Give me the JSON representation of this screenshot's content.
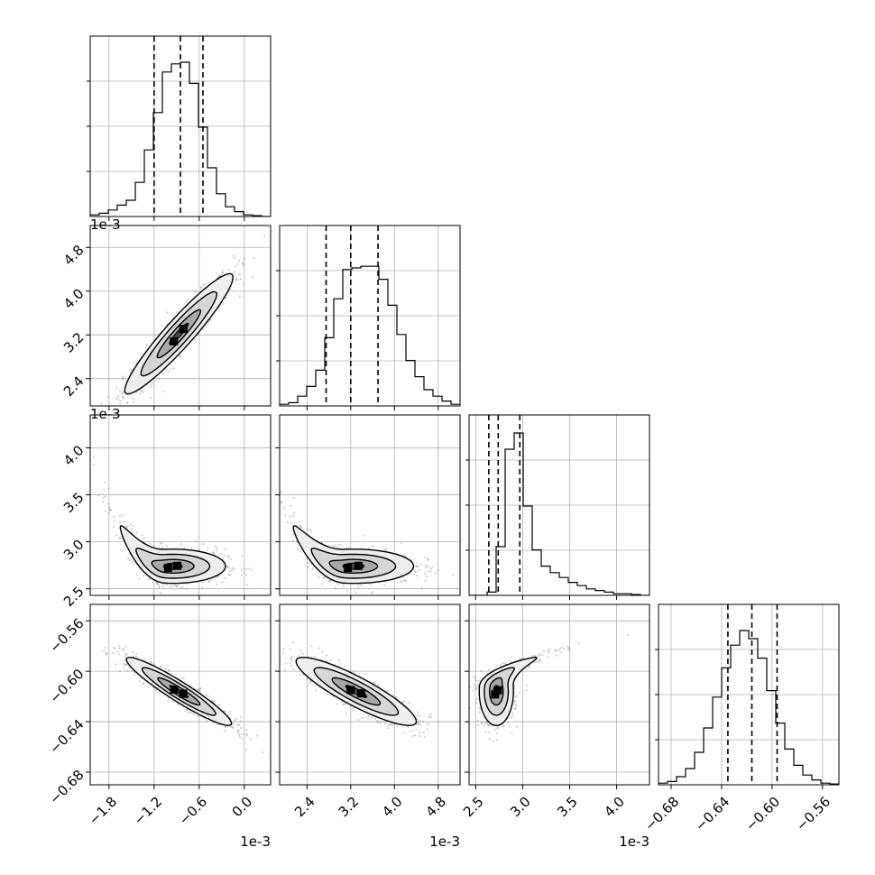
{
  "chart_data": {
    "type": "corner",
    "parameters": [
      {
        "id": "p0",
        "unit_offset": "1e-3",
        "range": [
          -2.05,
          0.35
        ],
        "ticks": [
          -1.8,
          -1.2,
          -0.6,
          0.0
        ],
        "tick_labels": [
          "−1.8",
          "−1.2",
          "−0.6",
          "0.0"
        ],
        "quantiles": [
          -1.2,
          -0.85,
          -0.55
        ]
      },
      {
        "id": "p1",
        "unit_offset": "1e-3",
        "range": [
          1.9,
          5.2
        ],
        "ticks": [
          2.4,
          3.2,
          4.0,
          4.8
        ],
        "tick_labels": [
          "2.4",
          "3.2",
          "4.0",
          "4.8"
        ],
        "quantiles": [
          2.75,
          3.2,
          3.7
        ]
      },
      {
        "id": "p2",
        "unit_offset": "1e-3",
        "range": [
          2.43,
          4.35
        ],
        "ticks": [
          2.5,
          3.0,
          3.5,
          4.0
        ],
        "tick_labels": [
          "2.5",
          "3.0",
          "3.5",
          "4.0"
        ],
        "quantiles": [
          2.64,
          2.74,
          2.97
        ]
      },
      {
        "id": "p3",
        "unit_offset": "",
        "range": [
          -0.69,
          -0.547
        ],
        "ticks": [
          -0.68,
          -0.64,
          -0.6,
          -0.56
        ],
        "tick_labels": [
          "−0.68",
          "−0.64",
          "−0.60",
          "−0.56"
        ],
        "quantiles": [
          -0.635,
          -0.616,
          -0.596
        ]
      }
    ],
    "histograms": [
      [
        0.01,
        0.02,
        0.04,
        0.07,
        0.1,
        0.21,
        0.41,
        0.64,
        0.89,
        0.94,
        0.95,
        0.82,
        0.55,
        0.3,
        0.14,
        0.06,
        0.03,
        0.01,
        0.005,
        0.0
      ],
      [
        0.01,
        0.02,
        0.06,
        0.12,
        0.22,
        0.42,
        0.66,
        0.84,
        0.85,
        0.86,
        0.86,
        0.78,
        0.62,
        0.44,
        0.28,
        0.18,
        0.1,
        0.06,
        0.03,
        0.01
      ],
      [
        0.0,
        0.0,
        0.02,
        0.3,
        0.9,
        1.0,
        0.55,
        0.28,
        0.18,
        0.14,
        0.11,
        0.08,
        0.06,
        0.04,
        0.03,
        0.02,
        0.01,
        0.01,
        0.005,
        0.0
      ],
      [
        0.01,
        0.02,
        0.05,
        0.1,
        0.2,
        0.35,
        0.54,
        0.72,
        0.86,
        0.95,
        0.9,
        0.78,
        0.58,
        0.38,
        0.22,
        0.12,
        0.06,
        0.03,
        0.01,
        0.005
      ]
    ],
    "pairs": [
      {
        "x": 0,
        "y": 1,
        "center": [
          -0.87,
          3.22
        ],
        "sd": [
          0.36,
          0.55
        ],
        "rho": 0.94
      },
      {
        "x": 0,
        "y": 2,
        "center": [
          -0.95,
          2.74
        ],
        "sd": [
          0.35,
          0.26
        ],
        "rho": -0.55,
        "shape": "banana"
      },
      {
        "x": 1,
        "y": 2,
        "center": [
          3.25,
          2.74
        ],
        "sd": [
          0.55,
          0.26
        ],
        "rho": -0.5,
        "shape": "banana"
      },
      {
        "x": 0,
        "y": 3,
        "center": [
          -0.87,
          -0.616
        ],
        "sd": [
          0.35,
          0.0135
        ],
        "rho": -0.94
      },
      {
        "x": 1,
        "y": 3,
        "center": [
          3.3,
          -0.616
        ],
        "sd": [
          0.55,
          0.0135
        ],
        "rho": -0.88
      },
      {
        "x": 2,
        "y": 3,
        "center": [
          2.72,
          -0.616
        ],
        "sd": [
          0.26,
          0.0135
        ],
        "rho": 0.6,
        "shape": "banana"
      }
    ],
    "grid": true
  }
}
